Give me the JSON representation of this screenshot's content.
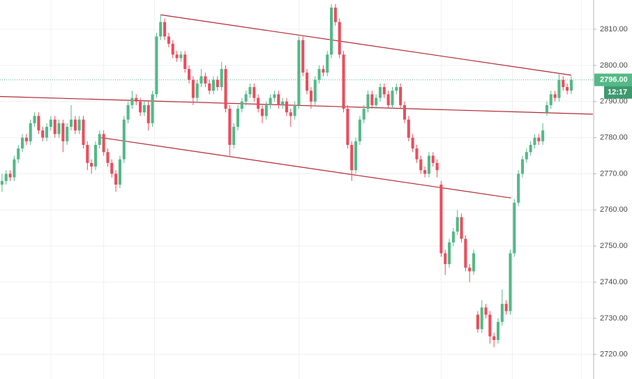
{
  "chart_data": {
    "type": "candlestick",
    "up_color": "#53b987",
    "down_color": "#eb4d5c",
    "ylim": [
      2713.2,
      2818.1
    ],
    "xlim": [
      -0.5,
      145.5
    ],
    "yticks": [
      {
        "value": 2720,
        "label": "2720.00"
      },
      {
        "value": 2730,
        "label": "2730.00"
      },
      {
        "value": 2740,
        "label": "2740.00"
      },
      {
        "value": 2750,
        "label": "2750.00"
      },
      {
        "value": 2760,
        "label": "2760.00"
      },
      {
        "value": 2770,
        "label": "2770.00"
      },
      {
        "value": 2780,
        "label": "2780.00"
      },
      {
        "value": 2790,
        "label": "2790.00"
      },
      {
        "value": 2800,
        "label": "2800.00"
      },
      {
        "value": 2810,
        "label": "2810.00"
      }
    ],
    "xticks": [
      12,
      25,
      37.5,
      73,
      108,
      125.5,
      142.5
    ],
    "grid": true,
    "last_price": {
      "value": 2796,
      "label": "2796.00"
    },
    "countdown": "12:17",
    "trend_lines": [
      {
        "color": "#b22833",
        "x": [
          39,
          140
        ],
        "y": [
          2814,
          2797.3
        ]
      },
      {
        "color": "#b22833",
        "x": [
          -0.5,
          145.3
        ],
        "y": [
          2791.4,
          2786.5
        ]
      },
      {
        "color": "#b22833",
        "x": [
          24.4,
          125.2
        ],
        "y": [
          2780,
          2763.3
        ]
      }
    ],
    "ohlc": [
      [
        2767,
        2770,
        2765,
        2768
      ],
      [
        2768,
        2771,
        2767,
        2770
      ],
      [
        2770,
        2771,
        2768,
        2769
      ],
      [
        2769,
        2775,
        2768,
        2774
      ],
      [
        2774,
        2778,
        2773,
        2777
      ],
      [
        2777,
        2781,
        2776,
        2780
      ],
      [
        2780,
        2781,
        2778,
        2779
      ],
      [
        2779,
        2785,
        2778,
        2784
      ],
      [
        2784,
        2787,
        2783,
        2786
      ],
      [
        2786,
        2787,
        2781,
        2782
      ],
      [
        2782,
        2783,
        2779,
        2780
      ],
      [
        2780,
        2784,
        2779,
        2783
      ],
      [
        2783,
        2786,
        2782,
        2785
      ],
      [
        2785,
        2786,
        2780,
        2781
      ],
      [
        2781,
        2785,
        2780,
        2784
      ],
      [
        2784,
        2785,
        2776,
        2779
      ],
      [
        2779,
        2784,
        2778,
        2783
      ],
      [
        2783,
        2789,
        2782,
        2785
      ],
      [
        2785,
        2786,
        2781,
        2782
      ],
      [
        2782,
        2786,
        2781,
        2785
      ],
      [
        2785,
        2786,
        2777,
        2778
      ],
      [
        2778,
        2779,
        2771,
        2773
      ],
      [
        2773,
        2774,
        2770,
        2772
      ],
      [
        2772,
        2779,
        2771,
        2778
      ],
      [
        2778,
        2782,
        2777,
        2781
      ],
      [
        2781,
        2782,
        2775,
        2776
      ],
      [
        2776,
        2777,
        2772,
        2773
      ],
      [
        2773,
        2774,
        2769,
        2770
      ],
      [
        2770,
        2771,
        2765,
        2767
      ],
      [
        2767,
        2775,
        2766,
        2774
      ],
      [
        2774,
        2786,
        2773,
        2785
      ],
      [
        2785,
        2790,
        2784,
        2789
      ],
      [
        2789,
        2793,
        2788,
        2791
      ],
      [
        2791,
        2792,
        2789,
        2790
      ],
      [
        2790,
        2791,
        2786,
        2787
      ],
      [
        2787,
        2790,
        2786,
        2789
      ],
      [
        2789,
        2790,
        2782,
        2784
      ],
      [
        2784,
        2793,
        2783,
        2792
      ],
      [
        2792,
        2809,
        2791,
        2808
      ],
      [
        2808,
        2814,
        2807,
        2812
      ],
      [
        2812,
        2813,
        2807,
        2808
      ],
      [
        2808,
        2809,
        2805,
        2806
      ],
      [
        2806,
        2807,
        2802,
        2803
      ],
      [
        2803,
        2804,
        2801,
        2802
      ],
      [
        2802,
        2804,
        2801,
        2803
      ],
      [
        2803,
        2804,
        2798,
        2799
      ],
      [
        2799,
        2800,
        2795,
        2796
      ],
      [
        2796,
        2797,
        2789,
        2791
      ],
      [
        2791,
        2796,
        2790,
        2795
      ],
      [
        2795,
        2799,
        2794,
        2797
      ],
      [
        2797,
        2798,
        2794,
        2795
      ],
      [
        2795,
        2796,
        2792,
        2793
      ],
      [
        2793,
        2797,
        2792,
        2796
      ],
      [
        2796,
        2797,
        2793,
        2794
      ],
      [
        2794,
        2801,
        2793,
        2799
      ],
      [
        2799,
        2800,
        2787,
        2788
      ],
      [
        2788,
        2789,
        2775,
        2778
      ],
      [
        2778,
        2784,
        2777,
        2783
      ],
      [
        2783,
        2789,
        2782,
        2788
      ],
      [
        2788,
        2791,
        2787,
        2790
      ],
      [
        2790,
        2793,
        2789,
        2792
      ],
      [
        2792,
        2795,
        2791,
        2794
      ],
      [
        2794,
        2795,
        2790,
        2791
      ],
      [
        2791,
        2792,
        2787,
        2788
      ],
      [
        2788,
        2789,
        2784,
        2786
      ],
      [
        2786,
        2790,
        2785,
        2789
      ],
      [
        2789,
        2792,
        2788,
        2791
      ],
      [
        2791,
        2793,
        2790,
        2792
      ],
      [
        2792,
        2793,
        2788,
        2789
      ],
      [
        2789,
        2791,
        2788,
        2790
      ],
      [
        2790,
        2791,
        2786,
        2787
      ],
      [
        2787,
        2788,
        2783,
        2786
      ],
      [
        2786,
        2790,
        2785,
        2789
      ],
      [
        2789,
        2808,
        2788,
        2807
      ],
      [
        2807,
        2808,
        2797,
        2798
      ],
      [
        2798,
        2799,
        2792,
        2793
      ],
      [
        2793,
        2794,
        2788,
        2790
      ],
      [
        2790,
        2797,
        2789,
        2796
      ],
      [
        2796,
        2800,
        2795,
        2799
      ],
      [
        2799,
        2800,
        2797,
        2798
      ],
      [
        2798,
        2804,
        2797,
        2803
      ],
      [
        2803,
        2817,
        2802,
        2816
      ],
      [
        2816,
        2817,
        2811,
        2812
      ],
      [
        2812,
        2813,
        2802,
        2803
      ],
      [
        2803,
        2804,
        2787,
        2788
      ],
      [
        2788,
        2789,
        2777,
        2778
      ],
      [
        2778,
        2779,
        2768,
        2771
      ],
      [
        2771,
        2780,
        2770,
        2779
      ],
      [
        2779,
        2786,
        2778,
        2785
      ],
      [
        2785,
        2789,
        2784,
        2788
      ],
      [
        2788,
        2793,
        2787,
        2792
      ],
      [
        2792,
        2793,
        2788,
        2789
      ],
      [
        2789,
        2792,
        2788,
        2791
      ],
      [
        2791,
        2795,
        2790,
        2794
      ],
      [
        2794,
        2795,
        2791,
        2792
      ],
      [
        2792,
        2793,
        2788,
        2789
      ],
      [
        2789,
        2794,
        2788,
        2793
      ],
      [
        2793,
        2795,
        2792,
        2794
      ],
      [
        2794,
        2795,
        2788,
        2789
      ],
      [
        2789,
        2790,
        2784,
        2785
      ],
      [
        2785,
        2786,
        2779,
        2780
      ],
      [
        2780,
        2781,
        2776,
        2777
      ],
      [
        2777,
        2778,
        2773,
        2774
      ],
      [
        2774,
        2775,
        2770,
        2771
      ],
      [
        2771,
        2772,
        2769,
        2770
      ],
      [
        2770,
        2776,
        2769,
        2775
      ],
      [
        2775,
        2776,
        2772,
        2773
      ],
      [
        2773,
        2774,
        2769,
        2771
      ],
      [
        2767,
        2768,
        2747,
        2748
      ],
      [
        2748,
        2749,
        2742,
        2745
      ],
      [
        2745,
        2752,
        2744,
        2751
      ],
      [
        2751,
        2755,
        2750,
        2754
      ],
      [
        2754,
        2760,
        2753,
        2758
      ],
      [
        2758,
        2759,
        2751,
        2752
      ],
      [
        2752,
        2753,
        2743,
        2744
      ],
      [
        2744,
        2745,
        2740,
        2743
      ],
      [
        2743,
        2749,
        2742,
        2748
      ],
      [
        2731,
        2732,
        2726,
        2727
      ],
      [
        2727,
        2735,
        2726,
        2733
      ],
      [
        2733,
        2734,
        2730,
        2731
      ],
      [
        2731,
        2732,
        2723,
        2725
      ],
      [
        2725,
        2726,
        2722,
        2724
      ],
      [
        2724,
        2730,
        2723,
        2729
      ],
      [
        2729,
        2738,
        2728,
        2734
      ],
      [
        2734,
        2735,
        2731,
        2732
      ],
      [
        2732,
        2749,
        2731,
        2748
      ],
      [
        2748,
        2763,
        2747,
        2762
      ],
      [
        2762,
        2771,
        2761,
        2770
      ],
      [
        2770,
        2775,
        2769,
        2774
      ],
      [
        2774,
        2777,
        2773,
        2776
      ],
      [
        2776,
        2779,
        2775,
        2778
      ],
      [
        2778,
        2781,
        2777,
        2780
      ],
      [
        2780,
        2781,
        2778,
        2779
      ],
      [
        2779,
        2784,
        2778,
        2782
      ],
      [
        2787,
        2790,
        2786,
        2789
      ],
      [
        2789,
        2793,
        2788,
        2792
      ],
      [
        2792,
        2793,
        2790,
        2791
      ],
      [
        2791,
        2798,
        2790,
        2796
      ],
      [
        2796,
        2797,
        2793,
        2794
      ],
      [
        2794,
        2795,
        2792,
        2793
      ],
      [
        2793,
        2797,
        2792,
        2796
      ]
    ]
  }
}
